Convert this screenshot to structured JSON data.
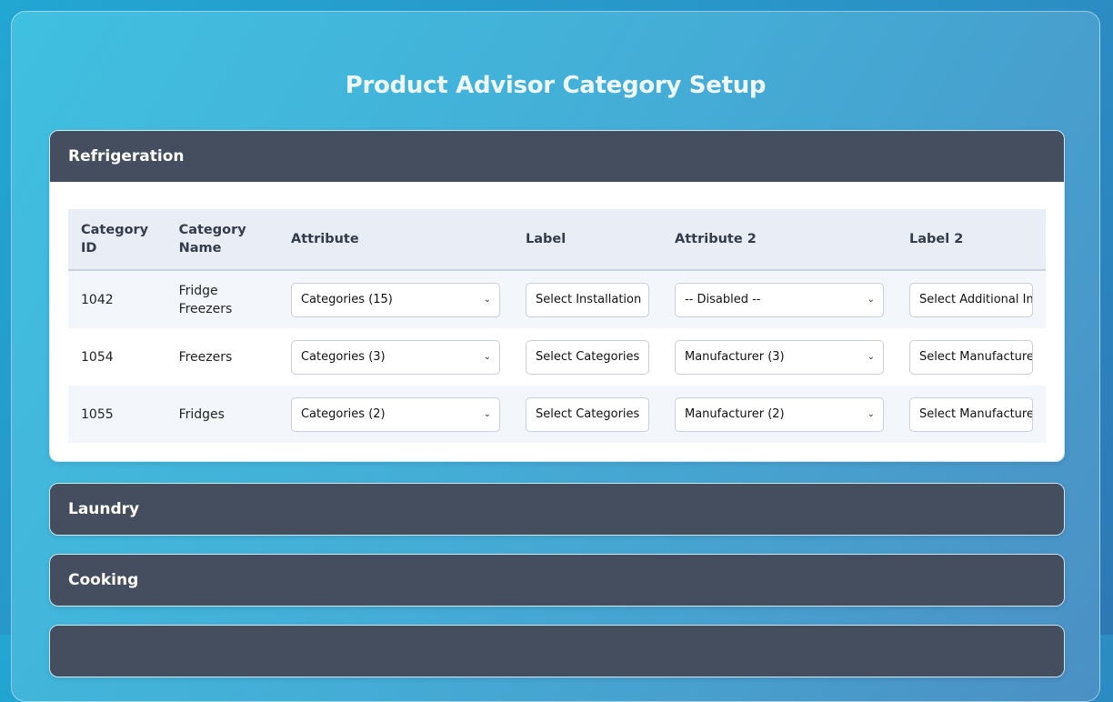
{
  "title": "Product Advisor Category Setup",
  "sections": [
    {
      "title": "Refrigeration",
      "expanded": true
    },
    {
      "title": "Laundry",
      "expanded": false
    },
    {
      "title": "Cooking",
      "expanded": false
    },
    {
      "title": "",
      "expanded": false
    }
  ],
  "table": {
    "headers": [
      "Category ID",
      "Category Name",
      "Attribute",
      "Label",
      "Attribute 2",
      "Label 2"
    ],
    "rows": [
      {
        "id": "1042",
        "name": "Fridge Freezers",
        "attribute": "Categories (15)",
        "label": "Select Installation",
        "attribute2": "-- Disabled --",
        "label2": "Select Additional In"
      },
      {
        "id": "1054",
        "name": "Freezers",
        "attribute": "Categories (3)",
        "label": "Select Categories",
        "attribute2": "Manufacturer (3)",
        "label2": "Select Manufacturer"
      },
      {
        "id": "1055",
        "name": "Fridges",
        "attribute": "Categories (2)",
        "label": "Select Categories",
        "attribute2": "Manufacturer (2)",
        "label2": "Select Manufacturer"
      }
    ]
  },
  "colors": {
    "section_header": "#454e5f",
    "table_header": "#e9eef6"
  }
}
